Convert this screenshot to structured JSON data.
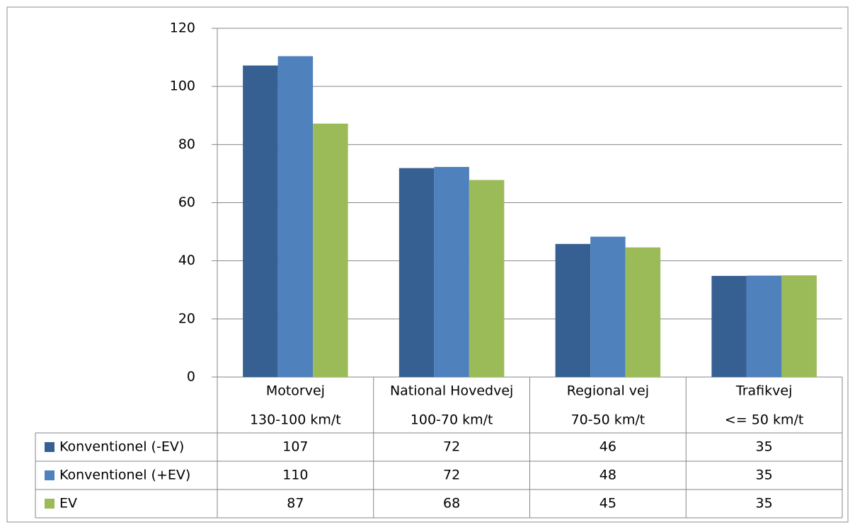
{
  "chart_data": {
    "type": "bar",
    "categories": [
      [
        "Motorvej",
        "130-100 km/t"
      ],
      [
        "National Hovedvej",
        "100-70 km/t"
      ],
      [
        "Regional vej",
        "70-50 km/t"
      ],
      [
        "Trafikvej",
        "<= 50 km/t"
      ]
    ],
    "series": [
      {
        "name": "Konventionel (-EV)",
        "color": "#376092",
        "values": [
          107.2,
          71.9,
          45.8,
          34.8
        ],
        "value_labels": [
          "107",
          "72",
          "46",
          "35"
        ]
      },
      {
        "name": "Konventionel (+EV)",
        "color": "#4f81bd",
        "values": [
          110.4,
          72.3,
          48.3,
          34.9
        ],
        "value_labels": [
          "110",
          "72",
          "48",
          "35"
        ]
      },
      {
        "name": "EV",
        "color": "#9bbb59",
        "values": [
          87.2,
          67.8,
          44.6,
          35.0
        ],
        "value_labels": [
          "87",
          "68",
          "45",
          "35"
        ]
      }
    ],
    "ylim": [
      0,
      120
    ],
    "yticks": [
      0,
      20,
      40,
      60,
      80,
      100,
      120
    ],
    "grid": true
  }
}
